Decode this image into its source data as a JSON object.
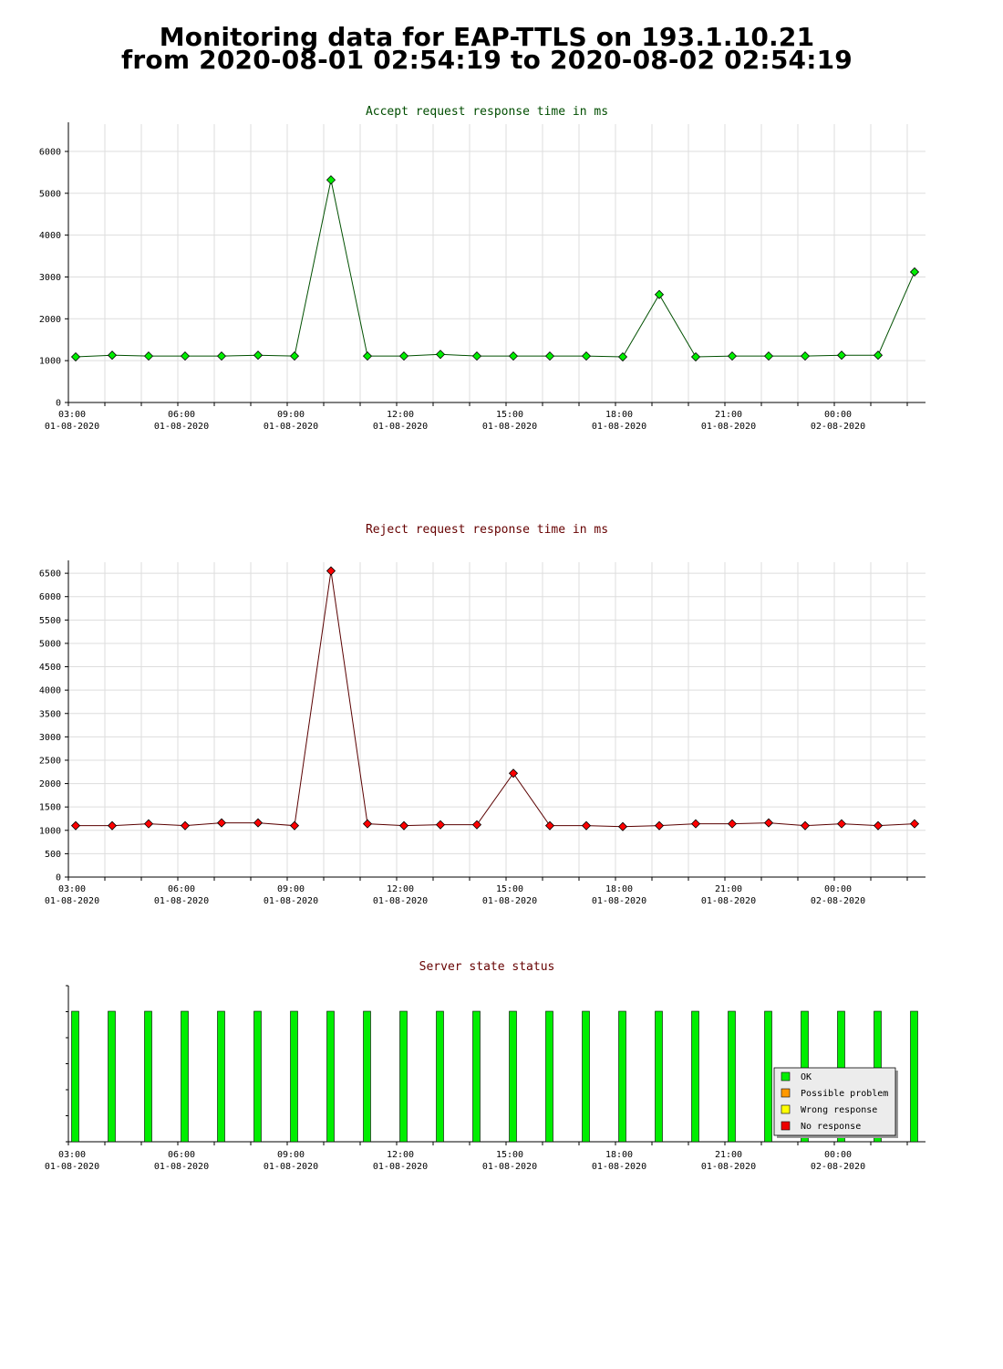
{
  "page": {
    "title_line1": "Monitoring data for EAP-TTLS on 193.1.10.21",
    "title_line2": "from 2020-08-01 02:54:19 to 2020-08-02 02:54:19"
  },
  "colors": {
    "accept_line": "#005000",
    "accept_point": "#00ee00",
    "accept_title": "#004d00",
    "reject_line": "#5a0000",
    "reject_point": "#ff0000",
    "reject_title": "#660000",
    "grid": "#dddddd",
    "ok": "#00ee00",
    "possible_problem": "#ff9900",
    "wrong_response": "#ffff00",
    "no_response": "#ee0000"
  },
  "chart_data": [
    {
      "type": "line",
      "title": "Accept request response time in ms",
      "x_ticks": [
        {
          "time": "03:00",
          "date": "01-08-2020"
        },
        {
          "time": "06:00",
          "date": "01-08-2020"
        },
        {
          "time": "09:00",
          "date": "01-08-2020"
        },
        {
          "time": "12:00",
          "date": "01-08-2020"
        },
        {
          "time": "15:00",
          "date": "01-08-2020"
        },
        {
          "time": "18:00",
          "date": "01-08-2020"
        },
        {
          "time": "21:00",
          "date": "01-08-2020"
        },
        {
          "time": "00:00",
          "date": "02-08-2020"
        }
      ],
      "x_hours": [
        3.1,
        4.1,
        5.1,
        6.1,
        7.1,
        8.1,
        9.1,
        10.1,
        11.1,
        12.1,
        13.1,
        14.1,
        15.1,
        16.1,
        17.1,
        18.1,
        19.1,
        20.1,
        21.1,
        22.1,
        23.1,
        24.1,
        25.1,
        26.1
      ],
      "values": [
        1090,
        1130,
        1110,
        1110,
        1110,
        1130,
        1110,
        5320,
        1110,
        1110,
        1150,
        1110,
        1110,
        1110,
        1110,
        1090,
        2580,
        1090,
        1110,
        1110,
        1110,
        1130,
        1130,
        3120
      ],
      "ylim": [
        0,
        6500
      ],
      "y_ticks": [
        0,
        1000,
        2000,
        3000,
        4000,
        5000,
        6000
      ],
      "grid": true
    },
    {
      "type": "line",
      "title": "Reject request response time in ms",
      "x_ticks": [
        {
          "time": "03:00",
          "date": "01-08-2020"
        },
        {
          "time": "06:00",
          "date": "01-08-2020"
        },
        {
          "time": "09:00",
          "date": "01-08-2020"
        },
        {
          "time": "12:00",
          "date": "01-08-2020"
        },
        {
          "time": "15:00",
          "date": "01-08-2020"
        },
        {
          "time": "18:00",
          "date": "01-08-2020"
        },
        {
          "time": "21:00",
          "date": "01-08-2020"
        },
        {
          "time": "00:00",
          "date": "02-08-2020"
        }
      ],
      "x_hours": [
        3.1,
        4.1,
        5.1,
        6.1,
        7.1,
        8.1,
        9.1,
        10.1,
        11.1,
        12.1,
        13.1,
        14.1,
        15.1,
        16.1,
        17.1,
        18.1,
        19.1,
        20.1,
        21.1,
        22.1,
        23.1,
        24.1,
        25.1,
        26.1
      ],
      "values": [
        1100,
        1100,
        1140,
        1100,
        1160,
        1160,
        1100,
        6550,
        1140,
        1100,
        1120,
        1120,
        2220,
        1100,
        1100,
        1080,
        1100,
        1140,
        1140,
        1160,
        1100,
        1140,
        1100,
        1140
      ],
      "ylim": [
        0,
        6600
      ],
      "y_ticks": [
        0,
        500,
        1000,
        1500,
        2000,
        2500,
        3000,
        3500,
        4000,
        4500,
        5000,
        5500,
        6000,
        6500
      ],
      "grid": true
    },
    {
      "type": "bar",
      "title": "Server state status",
      "x_ticks": [
        {
          "time": "03:00",
          "date": "01-08-2020"
        },
        {
          "time": "06:00",
          "date": "01-08-2020"
        },
        {
          "time": "09:00",
          "date": "01-08-2020"
        },
        {
          "time": "12:00",
          "date": "01-08-2020"
        },
        {
          "time": "15:00",
          "date": "01-08-2020"
        },
        {
          "time": "18:00",
          "date": "01-08-2020"
        },
        {
          "time": "21:00",
          "date": "01-08-2020"
        },
        {
          "time": "00:00",
          "date": "02-08-2020"
        }
      ],
      "x_hours": [
        3.1,
        4.1,
        5.1,
        6.1,
        7.1,
        8.1,
        9.1,
        10.1,
        11.1,
        12.1,
        13.1,
        14.1,
        15.1,
        16.1,
        17.1,
        18.1,
        19.1,
        20.1,
        21.1,
        22.1,
        23.1,
        24.1,
        25.1,
        26.1
      ],
      "states": [
        "OK",
        "OK",
        "OK",
        "OK",
        "OK",
        "OK",
        "OK",
        "OK",
        "OK",
        "OK",
        "OK",
        "OK",
        "OK",
        "OK",
        "OK",
        "OK",
        "OK",
        "OK",
        "OK",
        "OK",
        "OK",
        "OK",
        "OK",
        "OK"
      ],
      "legend": {
        "position": "bottom-right",
        "items": [
          {
            "label": "OK",
            "color": "#00ee00"
          },
          {
            "label": "Possible problem",
            "color": "#ff9900"
          },
          {
            "label": "Wrong response",
            "color": "#ffff00"
          },
          {
            "label": "No response",
            "color": "#ee0000"
          }
        ]
      }
    }
  ]
}
